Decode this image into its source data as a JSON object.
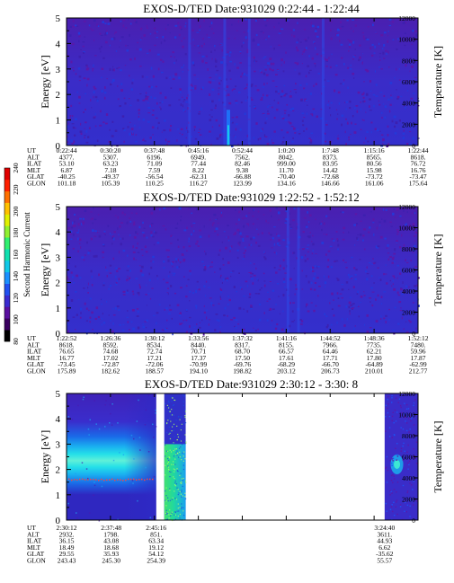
{
  "chart_data": [
    {
      "type": "heatmap",
      "title": "EXOS-D/TED   Date:931029   0:22:44 - 1:22:44",
      "ylabel": "Energy [eV]",
      "y2label": "Temperature [K]",
      "ylim": [
        0,
        5
      ],
      "y2lim": [
        0,
        12000
      ],
      "yticks": [
        "0",
        "1",
        "2",
        "3",
        "4",
        "5"
      ],
      "y2ticks": [
        "0",
        "2000",
        "4000",
        "6000",
        "8000",
        "10000",
        "12000"
      ],
      "data_coverage": [
        [
          0,
          1
        ]
      ],
      "background": "low-flat",
      "vertical_features": [
        0.35,
        0.45,
        0.52,
        0.73
      ],
      "rows": [
        {
          "label": "UT",
          "values": [
            "0:22:44",
            "0:30:20",
            "0:37:48",
            "0:45:16",
            "0:52:44",
            "1:0:20",
            "1:7:48",
            "1:15:16",
            "1:22:44"
          ]
        },
        {
          "label": "ALT",
          "values": [
            "4377.",
            "5307.",
            "6196.",
            "6949.",
            "7562.",
            "8042.",
            "8373.",
            "8565.",
            "8618."
          ]
        },
        {
          "label": "ILAT",
          "values": [
            "53.10",
            "63.23",
            "71.09",
            "77.44",
            "82.46",
            "999.00",
            "83.95",
            "80.56",
            "76.72"
          ]
        },
        {
          "label": "MLT",
          "values": [
            "6.87",
            "7.18",
            "7.59",
            "8.22",
            "9.38",
            "11.70",
            "14.42",
            "15.98",
            "16.76"
          ]
        },
        {
          "label": "GLAT",
          "values": [
            "-40.25",
            "-49.37",
            "-56.54",
            "-62.31",
            "-66.88",
            "-70.40",
            "-72.68",
            "-73.72",
            "-73.47"
          ]
        },
        {
          "label": "GLON",
          "values": [
            "101.18",
            "105.39",
            "110.25",
            "116.27",
            "123.99",
            "134.16",
            "146.66",
            "161.06",
            "175.64"
          ]
        }
      ]
    },
    {
      "type": "heatmap",
      "title": "EXOS-D/TED   Date:931029   1:22:52 - 1:52:12",
      "ylabel": "Energy [eV]",
      "y2label": "Temperature [K]",
      "ylim": [
        0,
        5
      ],
      "y2lim": [
        0,
        12000
      ],
      "yticks": [
        "0",
        "1",
        "2",
        "3",
        "4",
        "5"
      ],
      "y2ticks": [
        "0",
        "2000",
        "4000",
        "6000",
        "8000",
        "10000",
        "12000"
      ],
      "data_coverage": [
        [
          0,
          1
        ]
      ],
      "background": "low-flat",
      "vertical_features": [
        0.63,
        0.66
      ],
      "rows": [
        {
          "label": "UT",
          "values": [
            "1:22:52",
            "1:26:36",
            "1:30:12",
            "1:33:56",
            "1:37:32",
            "1:41:16",
            "1:44:52",
            "1:48:36",
            "1:52:12"
          ]
        },
        {
          "label": "ALT",
          "values": [
            "8618.",
            "8592.",
            "8534.",
            "8440.",
            "8317.",
            "8155.",
            "7966.",
            "7735.",
            "7480."
          ]
        },
        {
          "label": "ILAT",
          "values": [
            "76.65",
            "74.68",
            "72.74",
            "70.71",
            "68.70",
            "66.57",
            "64.46",
            "62.21",
            "59.96"
          ]
        },
        {
          "label": "MLT",
          "values": [
            "16.77",
            "17.02",
            "17.21",
            "17.37",
            "17.50",
            "17.61",
            "17.71",
            "17.80",
            "17.87"
          ]
        },
        {
          "label": "GLAT",
          "values": [
            "-73.45",
            "-72.87",
            "-72.06",
            "-70.99",
            "-69.76",
            "-68.29",
            "-66.70",
            "-64.89",
            "-62.99"
          ]
        },
        {
          "label": "GLON",
          "values": [
            "175.89",
            "182.62",
            "188.57",
            "194.10",
            "198.82",
            "203.12",
            "206.73",
            "210.01",
            "212.77"
          ]
        }
      ]
    },
    {
      "type": "heatmap",
      "title": "EXOS-D/TED   Date:931029   2:30:12 - 3:30: 8",
      "ylabel": "Energy [eV]",
      "y2label": "Temperature [K]",
      "ylim": [
        0,
        5
      ],
      "y2lim": [
        0,
        12000
      ],
      "yticks": [
        "0",
        "1",
        "2",
        "3",
        "4",
        "5"
      ],
      "y2ticks": [
        "0",
        "2000",
        "4000",
        "6000",
        "8000",
        "10000",
        "12000"
      ],
      "data_coverage": [
        [
          0,
          0.255
        ],
        [
          0.278,
          0.339
        ],
        [
          0.905,
          1
        ]
      ],
      "background": "band",
      "band_center_ev": 2.35,
      "band_fade_x": 0.165,
      "line_ev": 1.6,
      "rows": [
        {
          "label": "UT",
          "values": [
            [
              "2:30:12",
              0
            ],
            [
              "2:37:48",
              0.127
            ],
            [
              "2:45:16",
              0.255
            ],
            [
              "3:24:40",
              0.905
            ]
          ]
        },
        {
          "label": "ALT",
          "values": [
            [
              "2932.",
              0
            ],
            [
              "1798.",
              0.127
            ],
            [
              "851.",
              0.255
            ],
            [
              "3611.",
              0.905
            ]
          ]
        },
        {
          "label": "ILAT",
          "values": [
            [
              "36.15",
              0
            ],
            [
              "43.08",
              0.127
            ],
            [
              "63.34",
              0.255
            ],
            [
              "44.93",
              0.905
            ]
          ]
        },
        {
          "label": "MLT",
          "values": [
            [
              "18.49",
              0
            ],
            [
              "18.68",
              0.127
            ],
            [
              "19.12",
              0.255
            ],
            [
              "6.62",
              0.905
            ]
          ]
        },
        {
          "label": "GLAT",
          "values": [
            [
              "29.55",
              0
            ],
            [
              "35.93",
              0.127
            ],
            [
              "54.12",
              0.255
            ],
            [
              "-35.62",
              0.905
            ]
          ]
        },
        {
          "label": "GLON",
          "values": [
            [
              "243.43",
              0
            ],
            [
              "245.30",
              0.127
            ],
            [
              "254.39",
              0.255
            ],
            [
              "55.57",
              0.905
            ]
          ]
        }
      ]
    }
  ],
  "colorbar": {
    "label": "Second Harmonic Current",
    "ticks": [
      "80",
      "100",
      "120",
      "140",
      "160",
      "180",
      "200",
      "220",
      "240"
    ],
    "colors": [
      "#000000",
      "#3a0060",
      "#5a10a0",
      "#3a2bd0",
      "#2050f0",
      "#1a90ff",
      "#10c8e8",
      "#10e0b0",
      "#30f070",
      "#90f030",
      "#e0f000",
      "#ffc000",
      "#ff7000",
      "#ff2000",
      "#e00000"
    ]
  }
}
